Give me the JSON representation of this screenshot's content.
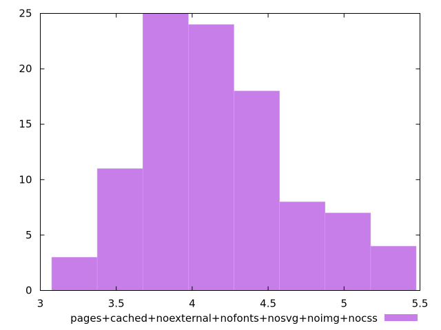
{
  "chart_data": {
    "type": "bar",
    "title": "",
    "xlabel": "",
    "ylabel": "",
    "bins": [
      {
        "start": 3.075,
        "end": 3.375,
        "value": 3
      },
      {
        "start": 3.375,
        "end": 3.675,
        "value": 11
      },
      {
        "start": 3.675,
        "end": 3.975,
        "value": 25
      },
      {
        "start": 3.975,
        "end": 4.275,
        "value": 24
      },
      {
        "start": 4.275,
        "end": 4.575,
        "value": 18
      },
      {
        "start": 4.575,
        "end": 4.875,
        "value": 8
      },
      {
        "start": 4.875,
        "end": 5.175,
        "value": 7
      },
      {
        "start": 5.175,
        "end": 5.475,
        "value": 4
      }
    ],
    "xlim": [
      3,
      5.5
    ],
    "ylim": [
      0,
      25
    ],
    "x_ticks": [
      "3",
      "3.5",
      "4",
      "4.5",
      "5",
      "5.5"
    ],
    "y_ticks": [
      "0",
      "5",
      "10",
      "15",
      "20",
      "25"
    ],
    "series": [
      {
        "name": "pages+cached+noexternal+nofonts+nosvg+noimg+nocss",
        "color": "#c77ee8"
      }
    ],
    "grid": false,
    "legend_position": "bottom"
  }
}
